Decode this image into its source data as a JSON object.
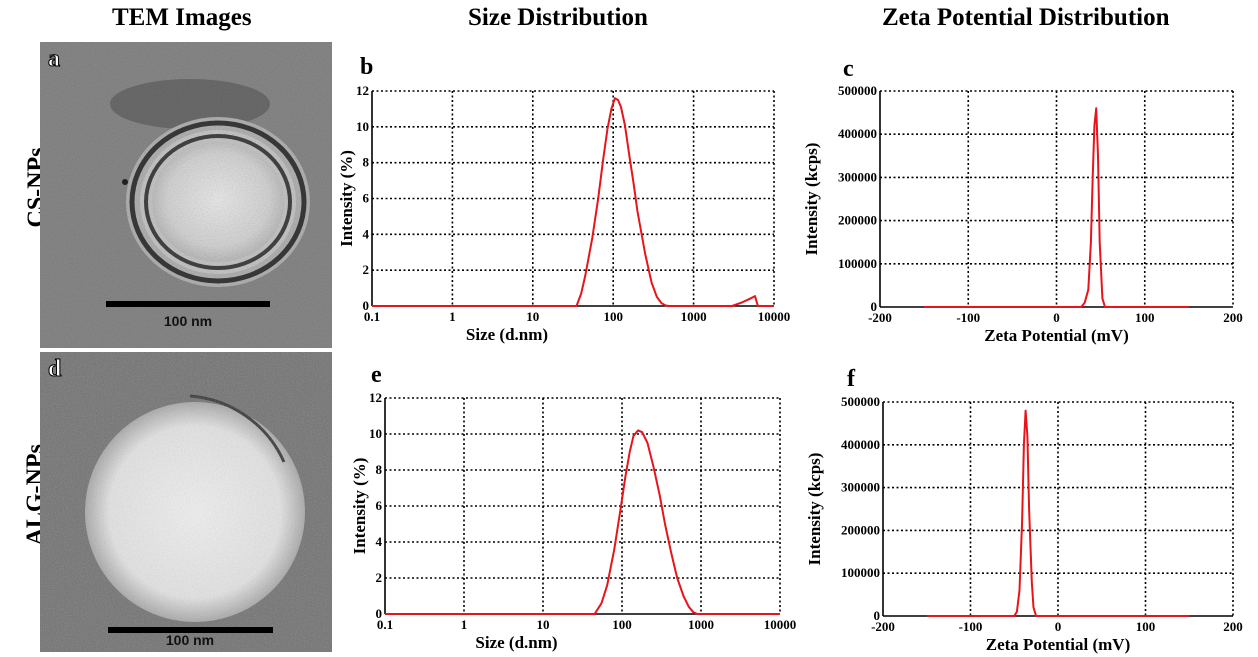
{
  "headers": {
    "tem": "TEM Images",
    "size": "Size Distribution",
    "zeta": "Zeta Potential Distribution"
  },
  "rows": [
    {
      "label": "CS-NPs",
      "tem_letter": "a",
      "scale_bar": "100 nm"
    },
    {
      "label": "ALG-NPs",
      "tem_letter": "d",
      "scale_bar": "100 nm"
    }
  ],
  "colors": {
    "curve": "#e8141b",
    "grid": "#000000"
  },
  "chart_data": [
    {
      "id": "b",
      "letter": "b",
      "type": "line",
      "xscale": "log",
      "xlabel": "Size (d.nm)",
      "ylabel": "Intensity (%)",
      "xlim": [
        0.1,
        10000
      ],
      "ylim": [
        0,
        12
      ],
      "xticks": [
        "0.1",
        "1",
        "10",
        "100",
        "1000",
        "10000"
      ],
      "yticks": [
        "0",
        "2",
        "4",
        "6",
        "8",
        "10",
        "12"
      ],
      "grid": true,
      "series": [
        {
          "x": [
            0.1,
            35,
            40,
            45,
            55,
            65,
            75,
            85,
            95,
            105,
            115,
            125,
            140,
            160,
            180,
            200,
            250,
            300,
            350,
            400,
            450,
            500,
            3000,
            4000,
            5000,
            5800,
            6300,
            10000
          ],
          "y": [
            0,
            0,
            0.7,
            1.7,
            3.8,
            6.0,
            8.2,
            9.9,
            11.0,
            11.6,
            11.5,
            11.1,
            10.1,
            8.3,
            6.8,
            5.3,
            2.9,
            1.3,
            0.5,
            0.15,
            0.03,
            0,
            0,
            0.2,
            0.4,
            0.55,
            0,
            0
          ]
        }
      ]
    },
    {
      "id": "c",
      "letter": "c",
      "type": "line",
      "xscale": "linear",
      "xlabel": "Zeta Potential (mV)",
      "ylabel": "Intensity (kcps)",
      "xlim": [
        -200,
        200
      ],
      "ylim": [
        0,
        500000
      ],
      "xticks": [
        "-200",
        "-100",
        "0",
        "100",
        "200"
      ],
      "yticks": [
        "0",
        "100000",
        "200000",
        "300000",
        "400000",
        "500000"
      ],
      "grid": true,
      "series": [
        {
          "x": [
            -150,
            28,
            32,
            36,
            39,
            41,
            43,
            45,
            47,
            49,
            52,
            55,
            150
          ],
          "y": [
            0,
            0,
            10000,
            40000,
            150000,
            300000,
            420000,
            460000,
            350000,
            150000,
            20000,
            0,
            0
          ]
        }
      ]
    },
    {
      "id": "e",
      "letter": "e",
      "type": "line",
      "xscale": "log",
      "xlabel": "Size (d.nm)",
      "ylabel": "Intensity (%)",
      "xlim": [
        0.1,
        10000
      ],
      "ylim": [
        0,
        12
      ],
      "xticks": [
        "0.1",
        "1",
        "10",
        "100",
        "1000",
        "10000"
      ],
      "yticks": [
        "0",
        "2",
        "4",
        "6",
        "8",
        "10",
        "12"
      ],
      "grid": true,
      "series": [
        {
          "x": [
            0.1,
            45,
            55,
            65,
            80,
            95,
            110,
            125,
            140,
            160,
            180,
            210,
            250,
            300,
            350,
            420,
            500,
            600,
            700,
            800,
            900,
            10000
          ],
          "y": [
            0,
            0,
            0.6,
            1.6,
            3.6,
            5.7,
            7.6,
            9.0,
            9.9,
            10.2,
            10.1,
            9.5,
            8.2,
            6.6,
            5.0,
            3.4,
            2.0,
            1.0,
            0.4,
            0.1,
            0,
            0
          ]
        }
      ]
    },
    {
      "id": "f",
      "letter": "f",
      "type": "line",
      "xscale": "linear",
      "xlabel": "Zeta Potential (mV)",
      "ylabel": "Intensity (kcps)",
      "xlim": [
        -200,
        200
      ],
      "ylim": [
        0,
        500000
      ],
      "xticks": [
        "-200",
        "-100",
        "0",
        "100",
        "200"
      ],
      "yticks": [
        "0",
        "100000",
        "200000",
        "300000",
        "400000",
        "500000"
      ],
      "grid": true,
      "series": [
        {
          "x": [
            -150,
            -50,
            -47,
            -44,
            -41,
            -39,
            -37,
            -35,
            -33,
            -30,
            -28,
            -25,
            150
          ],
          "y": [
            0,
            0,
            10000,
            60000,
            220000,
            400000,
            480000,
            420000,
            250000,
            80000,
            20000,
            0,
            0
          ]
        }
      ]
    }
  ]
}
